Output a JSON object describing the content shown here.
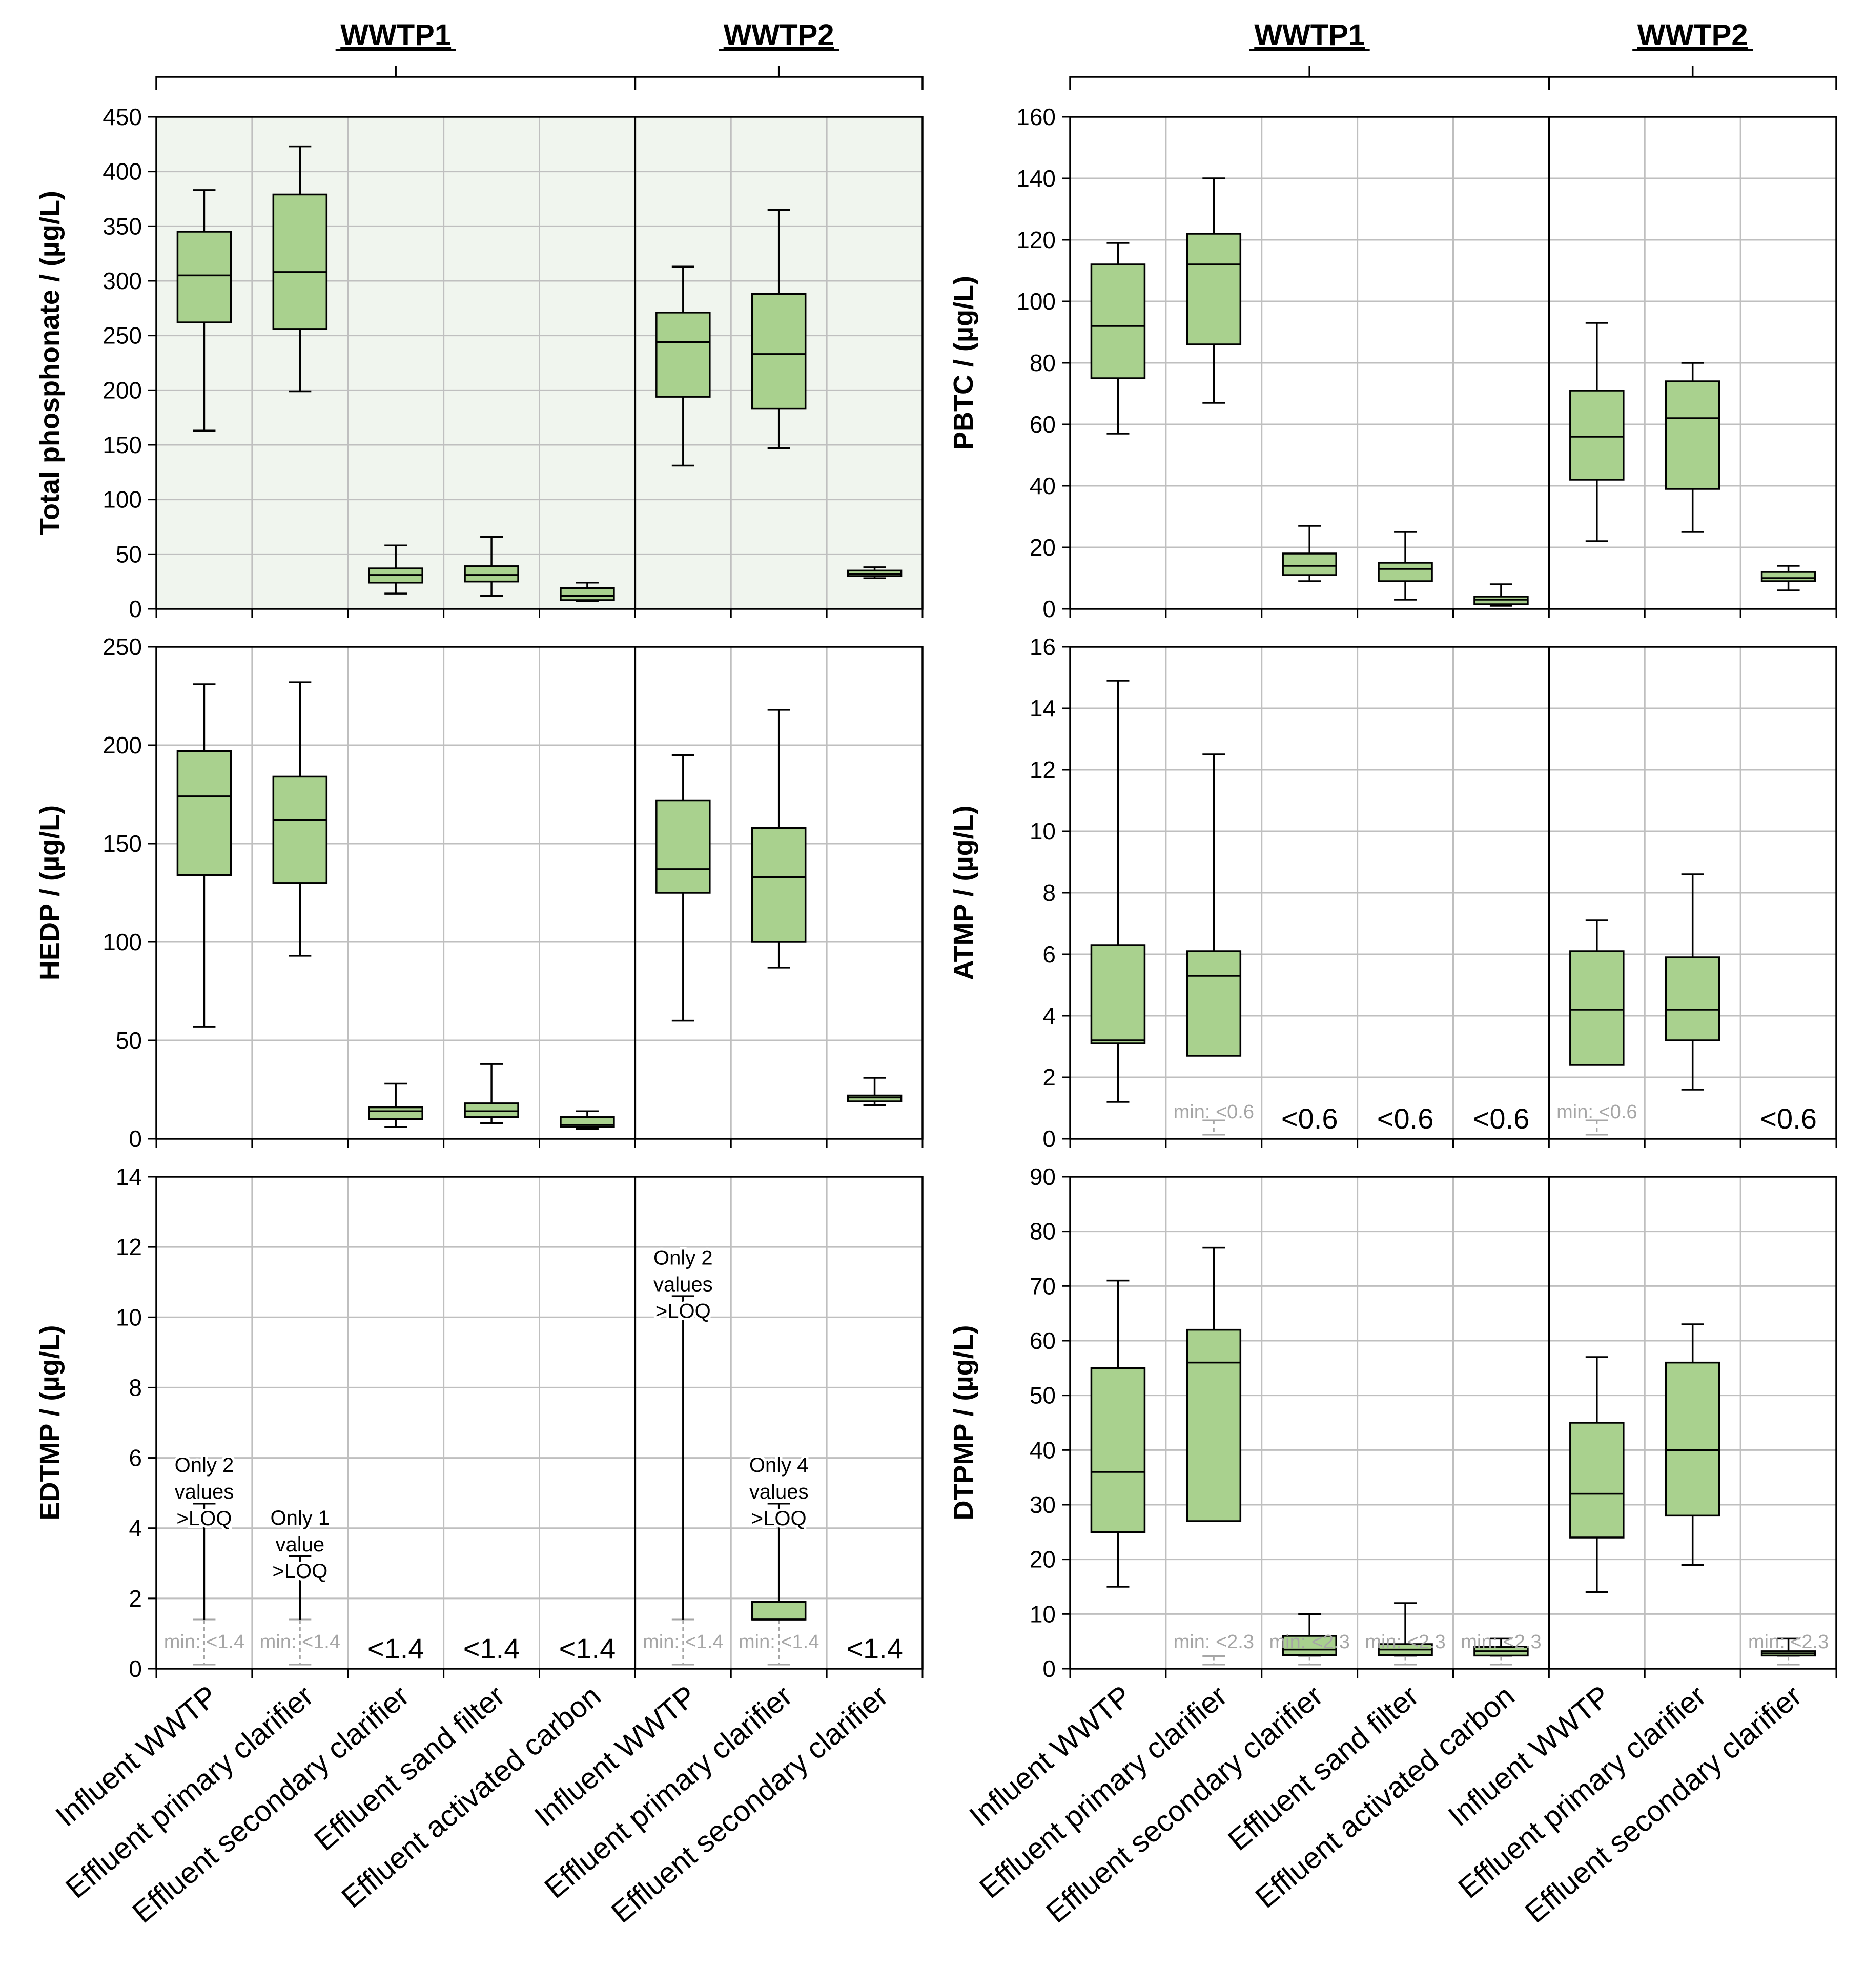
{
  "figure": {
    "group_labels": [
      "WWTP1",
      "WWTP2"
    ],
    "categories": [
      "Influent WWTP",
      "Effluent primary clarifier",
      "Effluent secondary clarifier",
      "Effluent sand filter",
      "Effluent activated carbon",
      "Influent WWTP",
      "Effluent primary clarifier",
      "Effluent secondary clarifier"
    ],
    "colors": {
      "box_fill": "#a9d18e",
      "shaded_bg": "#f0f5ee",
      "grid": "#bfbfbf",
      "loq_text": "#a6a6a6"
    }
  },
  "chart_data": [
    {
      "id": "total",
      "type": "box",
      "ylabel": "Total phosphonate / (µg/L)",
      "ylim": [
        0,
        450
      ],
      "yticks": [
        0,
        50,
        100,
        150,
        200,
        250,
        300,
        350,
        400,
        450
      ],
      "shaded": true,
      "boxes": [
        {
          "cat": 0,
          "min": 163,
          "q1": 262,
          "median": 305,
          "q3": 345,
          "max": 383
        },
        {
          "cat": 1,
          "min": 199,
          "q1": 256,
          "median": 308,
          "q3": 379,
          "max": 423
        },
        {
          "cat": 2,
          "min": 14,
          "q1": 24,
          "median": 31,
          "q3": 37,
          "max": 58
        },
        {
          "cat": 3,
          "min": 12,
          "q1": 25,
          "median": 31,
          "q3": 39,
          "max": 66
        },
        {
          "cat": 4,
          "min": 7,
          "q1": 8,
          "median": 12,
          "q3": 19,
          "max": 24
        },
        {
          "cat": 5,
          "min": 131,
          "q1": 194,
          "median": 244,
          "q3": 271,
          "max": 313
        },
        {
          "cat": 6,
          "min": 147,
          "q1": 183,
          "median": 233,
          "q3": 288,
          "max": 365
        },
        {
          "cat": 7,
          "min": 28,
          "q1": 30,
          "median": 32,
          "q3": 35,
          "max": 38
        }
      ],
      "texts": []
    },
    {
      "id": "pbtc",
      "type": "box",
      "ylabel": "PBTC / (µg/L)",
      "ylim": [
        0,
        160
      ],
      "yticks": [
        0,
        20,
        40,
        60,
        80,
        100,
        120,
        140,
        160
      ],
      "boxes": [
        {
          "cat": 0,
          "min": 57,
          "q1": 75,
          "median": 92,
          "q3": 112,
          "max": 119
        },
        {
          "cat": 1,
          "min": 67,
          "q1": 86,
          "median": 112,
          "q3": 122,
          "max": 140
        },
        {
          "cat": 2,
          "min": 9,
          "q1": 11,
          "median": 14,
          "q3": 18,
          "max": 27
        },
        {
          "cat": 3,
          "min": 3,
          "q1": 9,
          "median": 13,
          "q3": 15,
          "max": 25
        },
        {
          "cat": 4,
          "min": 1,
          "q1": 1.5,
          "median": 3,
          "q3": 4,
          "max": 8
        },
        {
          "cat": 5,
          "min": 22,
          "q1": 42,
          "median": 56,
          "q3": 71,
          "max": 93
        },
        {
          "cat": 6,
          "min": 25,
          "q1": 39,
          "median": 62,
          "q3": 74,
          "max": 80
        },
        {
          "cat": 7,
          "min": 6,
          "q1": 9,
          "median": 10,
          "q3": 12,
          "max": 14
        }
      ],
      "texts": []
    },
    {
      "id": "hedp",
      "type": "box",
      "ylabel": "HEDP / (µg/L)",
      "ylim": [
        0,
        250
      ],
      "yticks": [
        0,
        50,
        100,
        150,
        200,
        250
      ],
      "boxes": [
        {
          "cat": 0,
          "min": 57,
          "q1": 134,
          "median": 174,
          "q3": 197,
          "max": 231
        },
        {
          "cat": 1,
          "min": 93,
          "q1": 130,
          "median": 162,
          "q3": 184,
          "max": 232
        },
        {
          "cat": 2,
          "min": 6,
          "q1": 10,
          "median": 14,
          "q3": 16,
          "max": 28
        },
        {
          "cat": 3,
          "min": 8,
          "q1": 11,
          "median": 14,
          "q3": 18,
          "max": 38
        },
        {
          "cat": 4,
          "min": 5,
          "q1": 6,
          "median": 7,
          "q3": 11,
          "max": 14
        },
        {
          "cat": 5,
          "min": 60,
          "q1": 125,
          "median": 137,
          "q3": 172,
          "max": 195
        },
        {
          "cat": 6,
          "min": 87,
          "q1": 100,
          "median": 133,
          "q3": 158,
          "max": 218
        },
        {
          "cat": 7,
          "min": 17,
          "q1": 19,
          "median": 21,
          "q3": 22,
          "max": 31
        }
      ],
      "texts": []
    },
    {
      "id": "atmp",
      "type": "box",
      "ylabel": "ATMP / (µg/L)",
      "ylim": [
        0,
        16
      ],
      "yticks": [
        0,
        2,
        4,
        6,
        8,
        10,
        12,
        14,
        16
      ],
      "boxes": [
        {
          "cat": 0,
          "min": 1.2,
          "q1": 3.1,
          "median": 3.2,
          "q3": 6.3,
          "max": 14.9
        },
        {
          "cat": 1,
          "min": 0.6,
          "q1": 2.7,
          "median": 5.3,
          "q3": 6.1,
          "max": 12.5,
          "loq_whisker": true
        },
        {
          "cat": 5,
          "min": 0.6,
          "q1": 2.4,
          "median": 4.2,
          "q3": 6.1,
          "max": 7.1,
          "loq_whisker": true
        },
        {
          "cat": 6,
          "min": 1.6,
          "q1": 3.2,
          "median": 4.2,
          "q3": 5.9,
          "max": 8.6
        }
      ],
      "texts": [
        {
          "cat": 1,
          "kind": "min",
          "lines": [
            "min: <0.6"
          ]
        },
        {
          "cat": 5,
          "kind": "min",
          "lines": [
            "min: <0.6"
          ]
        },
        {
          "cat": 2,
          "kind": "lt",
          "lines": [
            "<0.6"
          ]
        },
        {
          "cat": 3,
          "kind": "lt",
          "lines": [
            "<0.6"
          ]
        },
        {
          "cat": 4,
          "kind": "lt",
          "lines": [
            "<0.6"
          ]
        },
        {
          "cat": 7,
          "kind": "lt",
          "lines": [
            "<0.6"
          ]
        }
      ]
    },
    {
      "id": "edtmp",
      "type": "box",
      "ylabel": "EDTMP / (µg/L)",
      "ylim": [
        0,
        14
      ],
      "yticks": [
        0,
        2,
        4,
        6,
        8,
        10,
        12,
        14
      ],
      "boxes": [
        {
          "cat": 0,
          "min": 1.4,
          "q1": 1.4,
          "median": 1.4,
          "q3": 1.4,
          "max": 4.7,
          "loq_whisker": true,
          "nobox": true
        },
        {
          "cat": 1,
          "min": 1.4,
          "q1": 1.4,
          "median": 1.4,
          "q3": 1.4,
          "max": 3.2,
          "loq_whisker": true,
          "nobox": true
        },
        {
          "cat": 5,
          "min": 1.4,
          "q1": 1.4,
          "median": 1.4,
          "q3": 1.4,
          "max": 10.6,
          "loq_whisker": true,
          "nobox": true
        },
        {
          "cat": 6,
          "min": 1.4,
          "q1": 1.4,
          "median": 1.4,
          "q3": 1.9,
          "max": 4.7,
          "loq_whisker": true
        }
      ],
      "texts": [
        {
          "cat": 0,
          "kind": "note",
          "y": 5.6,
          "lines": [
            "Only 2",
            "values",
            ">LOQ"
          ]
        },
        {
          "cat": 1,
          "kind": "note",
          "y": 4.1,
          "lines": [
            "Only 1",
            "value",
            ">LOQ"
          ]
        },
        {
          "cat": 5,
          "kind": "note",
          "y": 11.5,
          "lines": [
            "Only 2",
            "values",
            ">LOQ"
          ]
        },
        {
          "cat": 6,
          "kind": "note",
          "y": 5.6,
          "lines": [
            "Only 4",
            "values",
            ">LOQ"
          ]
        },
        {
          "cat": 0,
          "kind": "min",
          "lines": [
            "min: <1.4"
          ]
        },
        {
          "cat": 1,
          "kind": "min",
          "lines": [
            "min: <1.4"
          ]
        },
        {
          "cat": 5,
          "kind": "min",
          "lines": [
            "min: <1.4"
          ]
        },
        {
          "cat": 6,
          "kind": "min",
          "lines": [
            "min: <1.4"
          ]
        },
        {
          "cat": 2,
          "kind": "lt",
          "lines": [
            "<1.4"
          ]
        },
        {
          "cat": 3,
          "kind": "lt",
          "lines": [
            "<1.4"
          ]
        },
        {
          "cat": 4,
          "kind": "lt",
          "lines": [
            "<1.4"
          ]
        },
        {
          "cat": 7,
          "kind": "lt",
          "lines": [
            "<1.4"
          ]
        }
      ]
    },
    {
      "id": "dtpmp",
      "type": "box",
      "ylabel": "DTPMP / (µg/L)",
      "ylim": [
        0,
        90
      ],
      "yticks": [
        0,
        10,
        20,
        30,
        40,
        50,
        60,
        70,
        80,
        90
      ],
      "boxes": [
        {
          "cat": 0,
          "min": 15,
          "q1": 25,
          "median": 36,
          "q3": 55,
          "max": 71
        },
        {
          "cat": 1,
          "min": 2.3,
          "q1": 27,
          "median": 56,
          "q3": 62,
          "max": 77,
          "loq_whisker": true
        },
        {
          "cat": 2,
          "min": 2.3,
          "q1": 2.5,
          "median": 3.5,
          "q3": 6,
          "max": 10,
          "loq_whisker": true
        },
        {
          "cat": 3,
          "min": 2.3,
          "q1": 2.5,
          "median": 3.5,
          "q3": 4.5,
          "max": 12,
          "loq_whisker": true
        },
        {
          "cat": 4,
          "min": 2.3,
          "q1": 2.4,
          "median": 3.2,
          "q3": 4,
          "max": 5.5,
          "loq_whisker": true
        },
        {
          "cat": 5,
          "min": 14,
          "q1": 24,
          "median": 32,
          "q3": 45,
          "max": 57
        },
        {
          "cat": 6,
          "min": 19,
          "q1": 28,
          "median": 40,
          "q3": 56,
          "max": 63
        },
        {
          "cat": 7,
          "min": 2.3,
          "q1": 2.4,
          "median": 2.8,
          "q3": 3.2,
          "max": 5.5,
          "loq_whisker": true
        }
      ],
      "texts": [
        {
          "cat": 1,
          "kind": "min",
          "lines": [
            "min: <2.3"
          ]
        },
        {
          "cat": 2,
          "kind": "min",
          "lines": [
            "min: <2.3"
          ]
        },
        {
          "cat": 3,
          "kind": "min",
          "lines": [
            "min: <2.3"
          ]
        },
        {
          "cat": 4,
          "kind": "min",
          "lines": [
            "min: <2.3"
          ]
        },
        {
          "cat": 7,
          "kind": "min",
          "lines": [
            "min: <2.3"
          ]
        }
      ]
    }
  ]
}
